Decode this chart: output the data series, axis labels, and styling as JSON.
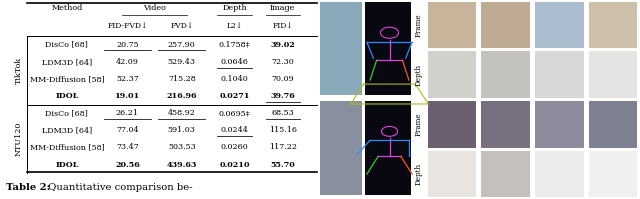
{
  "tiktok_label": "TikTok",
  "ntu_label": "NTU120",
  "tiktok_rows": [
    {
      "method": "DisCo [68]",
      "fid_fvd": "20.75",
      "fvd": "257.90",
      "l2": "0.1758‡",
      "img_fid": "39.02",
      "fid_fvd_ul": true,
      "fvd_ul": true,
      "l2_ul": false,
      "img_fid_ul": false,
      "img_fid_bold": true
    },
    {
      "method": "LDM3D [64]",
      "fid_fvd": "42.09",
      "fvd": "529.43",
      "l2": "0.0646",
      "img_fid": "72.30",
      "fid_fvd_ul": false,
      "fvd_ul": false,
      "l2_ul": true,
      "img_fid_ul": false,
      "img_fid_bold": false
    },
    {
      "method": "MM-Diffusion [58]",
      "fid_fvd": "52.37",
      "fvd": "715.28",
      "l2": "0.1040",
      "img_fid": "70.09",
      "fid_fvd_ul": false,
      "fvd_ul": false,
      "l2_ul": false,
      "img_fid_ul": false,
      "img_fid_bold": false
    },
    {
      "method": "IDOL",
      "fid_fvd": "19.01",
      "fvd": "216.96",
      "l2": "0.0271",
      "img_fid": "39.76",
      "fid_fvd_ul": false,
      "fvd_ul": false,
      "l2_ul": false,
      "img_fid_ul": true,
      "img_fid_bold": false,
      "is_idol": true
    }
  ],
  "ntu_rows": [
    {
      "method": "DisCo [68]",
      "fid_fvd": "26.21",
      "fvd": "458.92",
      "l2": "0.0695‡",
      "img_fid": "68.53",
      "fid_fvd_ul": true,
      "fvd_ul": true,
      "l2_ul": false,
      "img_fid_ul": true,
      "img_fid_bold": false
    },
    {
      "method": "LDM3D [64]",
      "fid_fvd": "77.04",
      "fvd": "591.03",
      "l2": "0.0244",
      "img_fid": "115.16",
      "fid_fvd_ul": false,
      "fvd_ul": false,
      "l2_ul": true,
      "img_fid_ul": false,
      "img_fid_bold": false
    },
    {
      "method": "MM-Diffusion [58]",
      "fid_fvd": "73.47",
      "fvd": "503.53",
      "l2": "0.0260",
      "img_fid": "117.22",
      "fid_fvd_ul": false,
      "fvd_ul": false,
      "l2_ul": false,
      "img_fid_ul": false,
      "img_fid_bold": false
    },
    {
      "method": "IDOL",
      "fid_fvd": "20.56",
      "fvd": "439.63",
      "l2": "0.0210",
      "img_fid": "55.70",
      "fid_fvd_ul": false,
      "fvd_ul": false,
      "l2_ul": false,
      "img_fid_ul": false,
      "img_fid_bold": false,
      "is_idol": true
    }
  ],
  "caption_bold": "Table 2:",
  "caption_rest": "  Quantitative comparison be-",
  "bg_color": "#ffffff",
  "grid_row_labels": [
    "Frame",
    "Depth",
    "Frame",
    "Depth"
  ],
  "grid_colors_row0": [
    "#c8b49a",
    "#bfab94",
    "#adbdd0",
    "#cec0aa"
  ],
  "grid_colors_row1": [
    "#d2d0cc",
    "#c4c2be",
    "#d8d8d8",
    "#e4e4e2"
  ],
  "grid_colors_row2": [
    "#6a6070",
    "#787080",
    "#8c8c9c",
    "#7c8090"
  ],
  "grid_colors_row3": [
    "#e8e4e0",
    "#c4c0bc",
    "#ececec",
    "#f0f0ee"
  ],
  "photo_top_color": "#8aaabb",
  "photo_bot_color": "#8890a0",
  "skeleton_bg": "#080810"
}
